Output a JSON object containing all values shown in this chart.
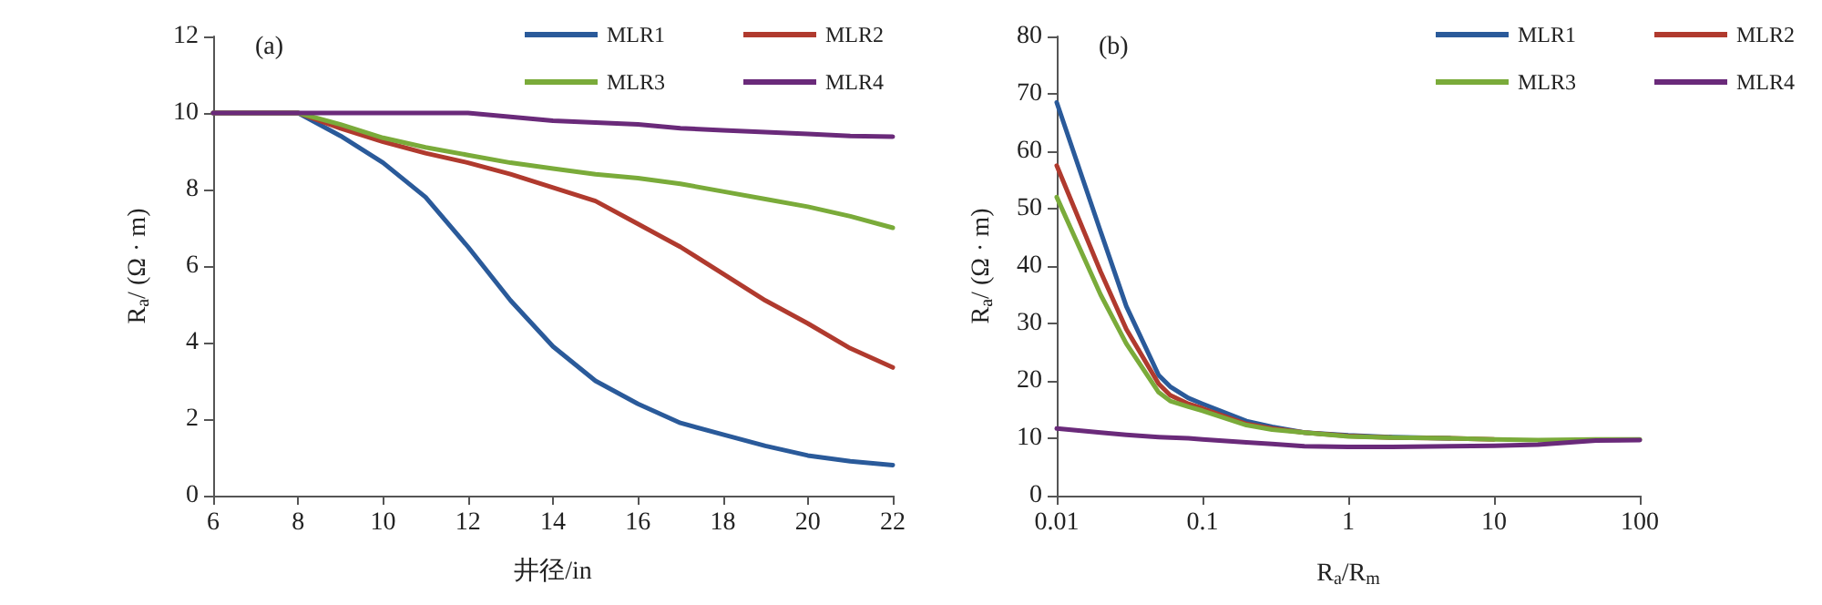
{
  "chart_data": [
    {
      "type": "line",
      "title": "(a)",
      "xlabel": "井径/in",
      "ylabel": "R$_{a}$/ (Ω · m)",
      "xlim": [
        6,
        22
      ],
      "xticks": [
        6,
        8,
        10,
        12,
        14,
        16,
        18,
        20,
        22
      ],
      "ylim": [
        0,
        12
      ],
      "yticks": [
        0,
        2,
        4,
        6,
        8,
        10,
        12
      ],
      "grid": false,
      "legend": "top right",
      "x": [
        6,
        7,
        8,
        9,
        10,
        11,
        12,
        13,
        14,
        15,
        16,
        17,
        18,
        19,
        20,
        21,
        22
      ],
      "series": [
        {
          "name": "MLR1",
          "color": "#2a5a9a",
          "values": [
            10,
            10,
            10,
            9.4,
            8.7,
            7.8,
            6.5,
            5.1,
            3.9,
            3.0,
            2.4,
            1.9,
            1.6,
            1.3,
            1.05,
            0.9,
            0.8
          ]
        },
        {
          "name": "MLR2",
          "color": "#b03a2e",
          "values": [
            10,
            10,
            10,
            9.6,
            9.25,
            8.95,
            8.7,
            8.4,
            8.05,
            7.7,
            7.1,
            6.5,
            5.8,
            5.1,
            4.5,
            3.85,
            3.35
          ]
        },
        {
          "name": "MLR3",
          "color": "#7aab3a",
          "values": [
            10,
            10,
            10,
            9.7,
            9.35,
            9.1,
            8.9,
            8.7,
            8.55,
            8.4,
            8.3,
            8.15,
            7.95,
            7.75,
            7.55,
            7.3,
            7.0
          ]
        },
        {
          "name": "MLR4",
          "color": "#6a2a7a",
          "values": [
            10,
            10,
            10,
            10,
            10,
            10,
            10,
            9.9,
            9.8,
            9.75,
            9.7,
            9.6,
            9.55,
            9.5,
            9.45,
            9.4,
            9.38
          ]
        }
      ]
    },
    {
      "type": "line",
      "title": "(b)",
      "xlabel": "R$_{a}$/R$_{m}$",
      "ylabel": "R$_{a}$/ (Ω · m)",
      "log": "x",
      "xlim": [
        0.01,
        100
      ],
      "xticks": [
        0.01,
        0.1,
        1,
        10,
        100
      ],
      "ylim": [
        0,
        80
      ],
      "yticks": [
        0,
        10,
        20,
        30,
        40,
        50,
        60,
        70,
        80
      ],
      "grid": false,
      "legend": "top right",
      "x": [
        0.01,
        0.02,
        0.03,
        0.05,
        0.06,
        0.08,
        0.1,
        0.2,
        0.3,
        0.5,
        1,
        2,
        5,
        10,
        20,
        50,
        100
      ],
      "series": [
        {
          "name": "MLR1",
          "color": "#2a5a9a",
          "values": [
            68.5,
            46,
            33,
            21,
            19,
            17,
            16,
            13,
            12,
            11,
            10.5,
            10.2,
            10,
            null,
            null,
            null,
            null
          ]
        },
        {
          "name": "MLR2",
          "color": "#b03a2e",
          "values": [
            57.5,
            39,
            29,
            19.5,
            17.5,
            16,
            15.2,
            12.5,
            11.7,
            11,
            10.4,
            10.1,
            10,
            9.8,
            null,
            null,
            null
          ]
        },
        {
          "name": "MLR3",
          "color": "#7aab3a",
          "values": [
            52,
            35,
            26.5,
            18,
            16.5,
            15.5,
            14.8,
            12.3,
            11.5,
            11,
            10.3,
            10.1,
            10,
            9.8,
            9.7,
            9.8,
            9.8
          ]
        },
        {
          "name": "MLR4",
          "color": "#6a2a7a",
          "values": [
            11.7,
            11,
            10.6,
            10.2,
            10.1,
            10,
            9.8,
            9.3,
            9,
            8.6,
            8.5,
            8.5,
            8.6,
            8.7,
            8.9,
            9.6,
            9.7
          ]
        }
      ]
    }
  ]
}
